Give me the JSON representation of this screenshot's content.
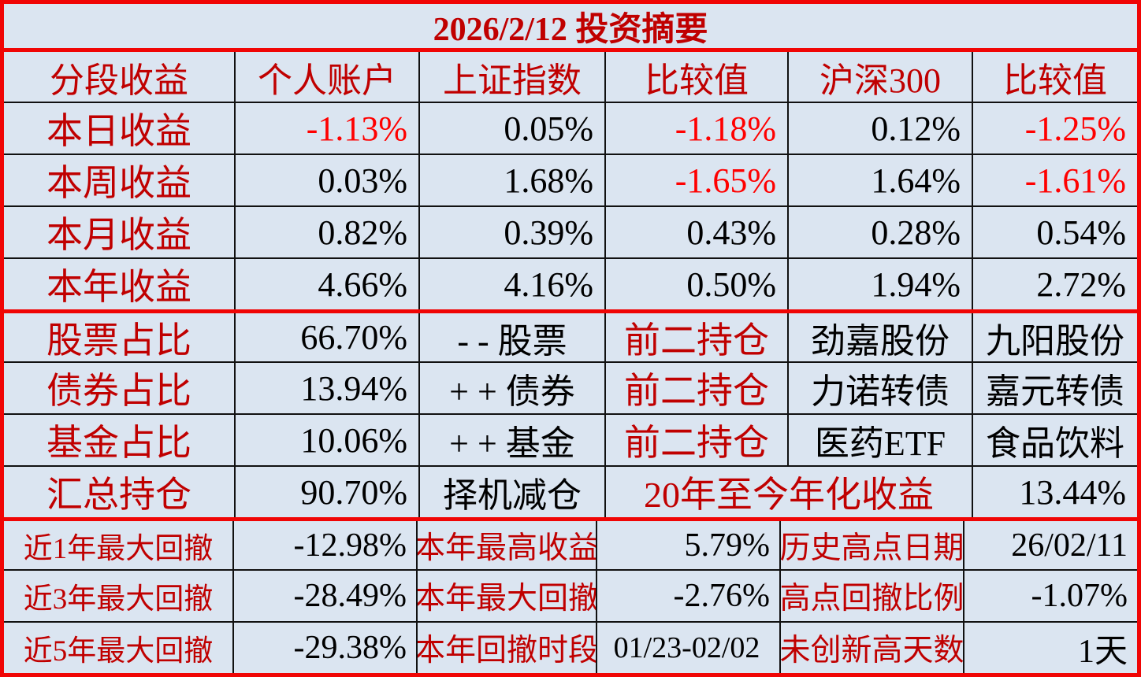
{
  "title": "2026/2/12 投资摘要",
  "columns": [
    "分段收益",
    "个人账户",
    "上证指数",
    "比较值",
    "沪深300",
    "比较值"
  ],
  "returns": [
    {
      "label": "本日收益",
      "values": [
        "-1.13%",
        "0.05%",
        "-1.18%",
        "0.12%",
        "-1.25%"
      ]
    },
    {
      "label": "本周收益",
      "values": [
        "0.03%",
        "1.68%",
        "-1.65%",
        "1.64%",
        "-1.61%"
      ]
    },
    {
      "label": "本月收益",
      "values": [
        "0.82%",
        "0.39%",
        "0.43%",
        "0.28%",
        "0.54%"
      ]
    },
    {
      "label": "本年收益",
      "values": [
        "4.66%",
        "4.16%",
        "0.50%",
        "1.94%",
        "2.72%"
      ]
    }
  ],
  "allocation": [
    {
      "label": "股票占比",
      "weight": "66.70%",
      "signal": "- - 股票",
      "tag": "前二持仓",
      "holding1": "劲嘉股份",
      "holding2": "九阳股份"
    },
    {
      "label": "债券占比",
      "weight": "13.94%",
      "signal": "+ + 债券",
      "tag": "前二持仓",
      "holding1": "力诺转债",
      "holding2": "嘉元转债"
    },
    {
      "label": "基金占比",
      "weight": "10.06%",
      "signal": "+ + 基金",
      "tag": "前二持仓",
      "holding1": "医药ETF",
      "holding2": "食品饮料"
    }
  ],
  "summary": {
    "label": "汇总持仓",
    "weight": "90.70%",
    "signal": "择机减仓",
    "annualized_label": "20年至今年化收益",
    "annualized_value": "13.44%"
  },
  "drawdowns": [
    {
      "label": "近1年最大回撤",
      "value": "-12.98%",
      "metric_label": "本年最高收益",
      "metric_value": "5.79%",
      "stat_label": "历史高点日期",
      "stat_value": "26/02/11"
    },
    {
      "label": "近3年最大回撤",
      "value": "-28.49%",
      "metric_label": "本年最大回撤",
      "metric_value": "-2.76%",
      "stat_label": "高点回撤比例",
      "stat_value": "-1.07%"
    },
    {
      "label": "近5年最大回撤",
      "value": "-29.38%",
      "metric_label": "本年回撤时段",
      "metric_value": "01/23-02/02",
      "stat_label": "未创新高天数",
      "stat_value": "1天"
    }
  ],
  "colors": {
    "background": "#dbe5f1",
    "label_red": "#c00000",
    "negative_red": "#ff0000",
    "value_black": "#000000",
    "separator_red": "#f00505",
    "grid_black": "#111111"
  }
}
